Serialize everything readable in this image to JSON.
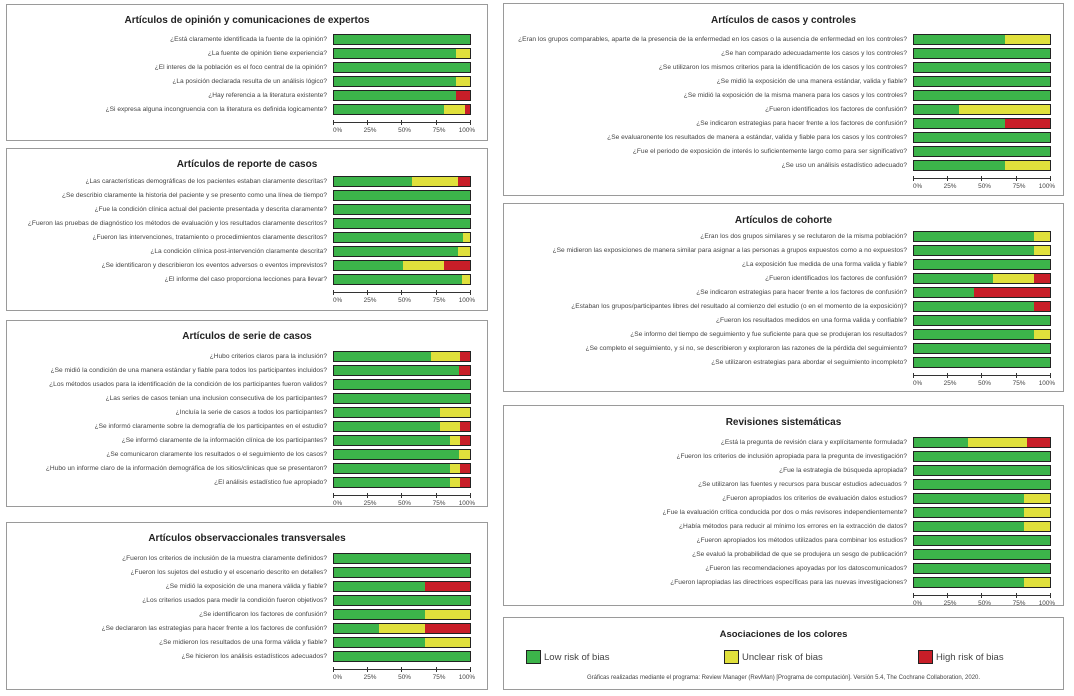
{
  "colors": {
    "low": "#3cb44a",
    "unclear": "#e0e03c",
    "high": "#c81e28"
  },
  "chart_data": [
    {
      "type": "bar",
      "stacked": true,
      "orientation": "horizontal",
      "title": "Artículos de opinión y comunicaciones de expertos",
      "xlim": [
        0,
        100
      ],
      "ticks": [
        "0%",
        "25%",
        "50%",
        "75%",
        "100%"
      ],
      "categories": [
        "¿Está claramente identificada la fuente de la opinión?",
        "¿La fuente de opinión tiene experiencia?",
        "¿El interes de la población es el foco central de la opinión?",
        "¿La posición declarada resulta de un análisis lógico?",
        "¿Hay referencia a la literatura existente?",
        "¿Si expresa alguna incongruencia con la literatura es definida logicamente?"
      ],
      "series": [
        {
          "name": "Low risk of bias",
          "values": [
            100,
            90,
            100,
            90,
            90,
            81
          ]
        },
        {
          "name": "Unclear risk of bias",
          "values": [
            0,
            10,
            0,
            10,
            0,
            15
          ]
        },
        {
          "name": "High risk of bias",
          "values": [
            0,
            0,
            0,
            0,
            10,
            4
          ]
        }
      ]
    },
    {
      "type": "bar",
      "stacked": true,
      "orientation": "horizontal",
      "title": "Artículos de reporte de casos",
      "xlim": [
        0,
        100
      ],
      "ticks": [
        "0%",
        "25%",
        "50%",
        "75%",
        "100%"
      ],
      "categories": [
        "¿Las características demográficas de los pacientes estaban claramente descritas?",
        "¿Se describio claramente la historia del paciente y se presento como una línea de tiempo?",
        "¿Fue la condición clínica actual del paciente presentada y descrita claramente?",
        "¿Fueron las pruebas de diagnóstico los métodos de evaluación y los resultados claramente descritos?",
        "¿Fueron las intervenciones, tratamiento o procedimientos claramente descritos?",
        "¿La condición clínica post-intervención claramente descrita?",
        "¿Se identificaron y describieron los eventos adversos o eventos imprevistos?",
        "¿El informe del caso proporciona lecciones para llevar?"
      ],
      "series": [
        {
          "name": "Low risk of bias",
          "values": [
            57,
            100,
            100,
            100,
            95,
            91,
            51,
            94
          ]
        },
        {
          "name": "Unclear risk of bias",
          "values": [
            34,
            0,
            0,
            0,
            5,
            9,
            30,
            6
          ]
        },
        {
          "name": "High risk of bias",
          "values": [
            9,
            0,
            0,
            0,
            0,
            0,
            19,
            0
          ]
        }
      ]
    },
    {
      "type": "bar",
      "stacked": true,
      "orientation": "horizontal",
      "title": "Artículos de serie de casos",
      "xlim": [
        0,
        100
      ],
      "ticks": [
        "0%",
        "25%",
        "50%",
        "75%",
        "100%"
      ],
      "categories": [
        "¿Hubo criterios claros para la inclusión?",
        "¿Se midió la condición de una manera estándar y fiable para todos los participantes incluidos?",
        "¿Los métodos usados para la identificación de la condición de los participantes fueron validos?",
        "¿Las series de casos tenian una inclusion consecutiva de los participantes?",
        "¿Incluía la serie de casos a todos los participantes?",
        "¿Se informó claramente sobre la demografía de los participantes en el estudio?",
        "¿Se informó claramente de la información clínica de los participantes?",
        "¿Se comunicaron claramente los resultados o el seguimiento de los casos?",
        "¿Hubo un informe claro de la información demográfica de los sitios/clinicas que se presentaron?",
        "¿El análisis estadístico fue apropiado?"
      ],
      "series": [
        {
          "name": "Low risk of bias",
          "values": [
            71,
            92,
            100,
            100,
            78,
            78,
            85,
            92,
            85,
            85
          ]
        },
        {
          "name": "Unclear risk of bias",
          "values": [
            22,
            0,
            0,
            0,
            22,
            15,
            8,
            8,
            8,
            8
          ]
        },
        {
          "name": "High risk of bias",
          "values": [
            7,
            8,
            0,
            0,
            0,
            7,
            7,
            0,
            7,
            7
          ]
        }
      ]
    },
    {
      "type": "bar",
      "stacked": true,
      "orientation": "horizontal",
      "title": "Artículos observaccionales transversales",
      "xlim": [
        0,
        100
      ],
      "ticks": [
        "0%",
        "25%",
        "50%",
        "75%",
        "100%"
      ],
      "categories": [
        "¿Fueron los criterios de inclusión de la muestra claramente definidos?",
        "¿Fueron los sujetos del estudio y el escenario descrito en detalles?",
        "¿Se midió la exposición de una manera válida y fiable?",
        "¿Los criterios usados para medir la condición fueron objetivos?",
        "¿Se identificaron los factores de confusión?",
        "¿Se declararon las estrategias para hacer frente a los factores de confusión?",
        "¿Se midieron los resultados de una forma válida y fiable?",
        "¿Se hicieron los análisis estadísticos adecuados?"
      ],
      "series": [
        {
          "name": "Low risk of bias",
          "values": [
            100,
            100,
            67,
            100,
            67,
            33,
            67,
            100
          ]
        },
        {
          "name": "Unclear risk of bias",
          "values": [
            0,
            0,
            0,
            0,
            33,
            34,
            33,
            0
          ]
        },
        {
          "name": "High risk of bias",
          "values": [
            0,
            0,
            33,
            0,
            0,
            33,
            0,
            0
          ]
        }
      ]
    },
    {
      "type": "bar",
      "stacked": true,
      "orientation": "horizontal",
      "title": "Artículos de casos y controles",
      "xlim": [
        0,
        100
      ],
      "ticks": [
        "0%",
        "25%",
        "50%",
        "75%",
        "100%"
      ],
      "categories": [
        "¿Eran los grupos comparables, aparte de la presencia de la enfermedad en los casos o la ausencia de enfermedad en los controles?",
        "¿Se han comparado adecuadamente los casos y los controles?",
        "¿Se utilizaron los mismos criterios para la identificación de los casos y los controles?",
        "¿Se midió la exposición de una manera estándar, valida y fiable?",
        "¿Se midió la exposición de la misma manera para los casos y los controles?",
        "¿Fueron identificados los factores de confusión?",
        "¿Se indicaron estrategias para hacer frente a los factores de confusión?",
        "¿Se evaluaronente los resultados de manera a estándar, valida y fiable para los casos y los controles?",
        "¿Fue el periodo de exposición de interés lo suficientemente largo como para ser significativo?",
        "¿Se uso un análisis estadístico adecuado?"
      ],
      "series": [
        {
          "name": "Low risk of bias",
          "values": [
            67,
            100,
            100,
            100,
            100,
            33,
            67,
            100,
            100,
            67
          ]
        },
        {
          "name": "Unclear risk of bias",
          "values": [
            33,
            0,
            0,
            0,
            0,
            67,
            0,
            0,
            0,
            33
          ]
        },
        {
          "name": "High risk of bias",
          "values": [
            0,
            0,
            0,
            0,
            0,
            0,
            33,
            0,
            0,
            0
          ]
        }
      ]
    },
    {
      "type": "bar",
      "stacked": true,
      "orientation": "horizontal",
      "title": "Artículos de cohorte",
      "xlim": [
        0,
        100
      ],
      "ticks": [
        "0%",
        "25%",
        "50%",
        "75%",
        "100%"
      ],
      "categories": [
        "¿Eran los dos grupos similares y se reclutaron de la misma población?",
        "¿Se midieron las exposiciones de manera similar para asignar a las personas a grupos expuestos como a no expuestos?",
        "¿La exposición fue medida de una forma valida y fiable?",
        "¿Fueron identificados los factores de confusión?",
        "¿Se indicaron estrategias para hacer frente a los factores de confusión?",
        "¿Estaban los grupos/participantes libres del resultado al comienzo del estudio (o en el momento de la exposición)?",
        "¿Fueron los resultados medidos en una forma valida y confiable?",
        "¿Se informo del tiempo de seguimiento y fue suficiente para que se produjeran los resultados?",
        "¿Se completo el seguimiento, y si no, se describieron y exploraron las razones de la pérdida del seguimiento?",
        "¿Se utilizaron estrategias para abordar el seguimiento incompleto?"
      ],
      "series": [
        {
          "name": "Low risk of bias",
          "values": [
            88,
            88,
            100,
            58,
            44,
            88,
            100,
            88,
            100,
            100
          ]
        },
        {
          "name": "Unclear risk of bias",
          "values": [
            12,
            12,
            0,
            30,
            0,
            0,
            0,
            12,
            0,
            0
          ]
        },
        {
          "name": "High risk of bias",
          "values": [
            0,
            0,
            0,
            12,
            56,
            12,
            0,
            0,
            0,
            0
          ]
        }
      ]
    },
    {
      "type": "bar",
      "stacked": true,
      "orientation": "horizontal",
      "title": "Revisiones sistemáticas",
      "xlim": [
        0,
        100
      ],
      "ticks": [
        "0%",
        "25%",
        "50%",
        "75%",
        "100%"
      ],
      "categories": [
        "¿Está la pregunta de revisión clara y explícitamente formulada?",
        "¿Fueron los criterios de inclusión apropiada para la pregunta de investigación?",
        "¿Fue la estrategia de búsqueda apropiada?",
        "¿Se utilizaron las fuentes y recursos para buscar estudios adecuados ?",
        "¿Fueron apropiados los criterios de evaluación dalos estudios?",
        "¿Fue la evaluación crítica conducida por dos o más revisores independientemente?",
        "¿Había métodos para reducir al mínimo los errores en la extracción de datos?",
        "¿Fueron apropiados los métodos utilizados para combinar los estudios?",
        "¿Se evaluó la probabilidad de que se produjera un sesgo de publicación?",
        "¿Fueron las recomendaciones apoyadas por los datoscomunicados?",
        "¿Fueron lapropiadas las directrices específicas para las nuevas investigaciones?"
      ],
      "series": [
        {
          "name": "Low risk of bias",
          "values": [
            40,
            100,
            100,
            100,
            81,
            81,
            81,
            100,
            100,
            100,
            81
          ]
        },
        {
          "name": "Unclear risk of bias",
          "values": [
            43,
            0,
            0,
            0,
            19,
            19,
            19,
            0,
            0,
            0,
            19
          ]
        },
        {
          "name": "High risk of bias",
          "values": [
            17,
            0,
            0,
            0,
            0,
            0,
            0,
            0,
            0,
            0,
            0
          ]
        }
      ]
    }
  ],
  "legend": {
    "title": "Asociaciones de los colores",
    "items": [
      {
        "label": "Low risk of bias",
        "key": "low"
      },
      {
        "label": "Unclear risk of bias",
        "key": "unclear"
      },
      {
        "label": "High risk of bias",
        "key": "high"
      }
    ],
    "credit": "Gráficas realizadas mediante el programa: Review Manager (RevMan) [Programa de computación]. Versión 5.4, The Cochrane Collaboration, 2020."
  }
}
